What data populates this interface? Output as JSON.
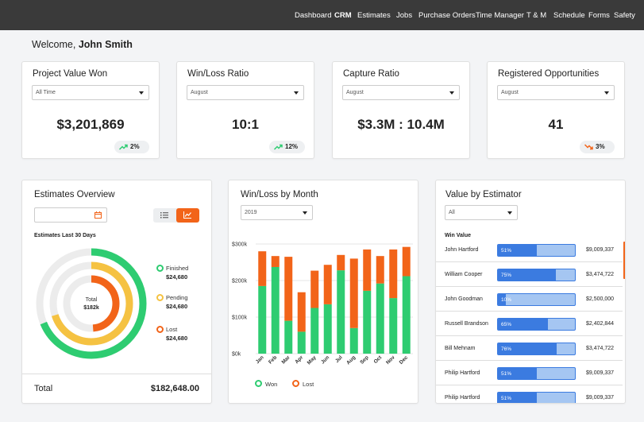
{
  "nav": {
    "items": [
      {
        "label": "Dashboard",
        "active": false
      },
      {
        "label": "CRM",
        "active": true
      },
      {
        "label": "Estimates",
        "active": false
      },
      {
        "label": "Jobs",
        "active": false
      },
      {
        "label": "Purchase Orders",
        "active": false
      },
      {
        "label": "Time Manager",
        "active": false
      },
      {
        "label": "T & M",
        "active": false
      },
      {
        "label": "Schedule",
        "active": false
      },
      {
        "label": "Forms",
        "active": false
      },
      {
        "label": "Safety",
        "active": false
      }
    ]
  },
  "welcome": {
    "prefix": "Welcome,",
    "user": "John Smith"
  },
  "kpis": [
    {
      "title": "Project Value Won",
      "filter": "All Time",
      "value": "$3,201,869",
      "change": "2%",
      "trend": "up"
    },
    {
      "title": "Win/Loss Ratio",
      "filter": "August",
      "value": "10:1",
      "change": "12%",
      "trend": "up"
    },
    {
      "title": "Capture Ratio",
      "filter": "August",
      "value": "$3.3M : 10.4M",
      "change": "",
      "trend": ""
    },
    {
      "title": "Registered Opportunities",
      "filter": "August",
      "value": "41",
      "change": "3%",
      "trend": "down"
    }
  ],
  "estimates_overview": {
    "title": "Estimates Overview",
    "subtitle": "Estimates Last 30 Days",
    "center_label": "Total",
    "center_value": "$182k",
    "legend": [
      {
        "label": "Finished",
        "value": "$24,680",
        "color": "#2ecc71"
      },
      {
        "label": "Pending",
        "value": "$24,680",
        "color": "#f5c242"
      },
      {
        "label": "Lost",
        "value": "$24,680",
        "color": "#f26419"
      }
    ],
    "total_label": "Total",
    "total_value": "$182,648.00"
  },
  "winloss": {
    "title": "Win/Loss by Month",
    "filter": "2019"
  },
  "chart_data": {
    "type": "bar",
    "stacked": true,
    "categories": [
      "Jan",
      "Feb",
      "Mar",
      "Apr",
      "May",
      "Jun",
      "Jul",
      "Aug",
      "Sep",
      "Oct",
      "Nov",
      "Dec"
    ],
    "series": [
      {
        "name": "Won",
        "color": "#2ecc71",
        "values": [
          185,
          237,
          90,
          60,
          125,
          135,
          228,
          70,
          172,
          192,
          152,
          212
        ]
      },
      {
        "name": "Lost",
        "color": "#f26419",
        "values": [
          95,
          30,
          175,
          108,
          102,
          108,
          42,
          190,
          113,
          75,
          133,
          80
        ]
      }
    ],
    "yticks": [
      "$0k",
      "$100k",
      "$200k",
      "$300k"
    ],
    "ylim": [
      0,
      300
    ],
    "legend": "bottom",
    "grid": true
  },
  "value_by_estimator": {
    "title": "Value by Estimator",
    "filter": "All",
    "header": "Win Value",
    "rows": [
      {
        "name": "John Hartford",
        "pct": 51,
        "pct_label": "51%",
        "amount": "$9,009,337"
      },
      {
        "name": "William Cooper",
        "pct": 75,
        "pct_label": "75%",
        "amount": "$3,474,722"
      },
      {
        "name": "John Goodman",
        "pct": 10,
        "pct_label": "10%",
        "amount": "$2,500,000"
      },
      {
        "name": "Russell Brandson",
        "pct": 65,
        "pct_label": "65%",
        "amount": "$2,402,844"
      },
      {
        "name": "Bill Mehnam",
        "pct": 76,
        "pct_label": "76%",
        "amount": "$3,474,722"
      },
      {
        "name": "Philip Hartford",
        "pct": 51,
        "pct_label": "51%",
        "amount": "$9,009,337"
      },
      {
        "name": "Philip Hartford",
        "pct": 51,
        "pct_label": "51%",
        "amount": "$9,009,337"
      }
    ]
  },
  "colors": {
    "accent": "#f26419",
    "won": "#2ecc71",
    "lost": "#f26419",
    "pending": "#f5c242",
    "bar_blue": "#3b7be0",
    "bar_light": "#a5c6f2"
  }
}
